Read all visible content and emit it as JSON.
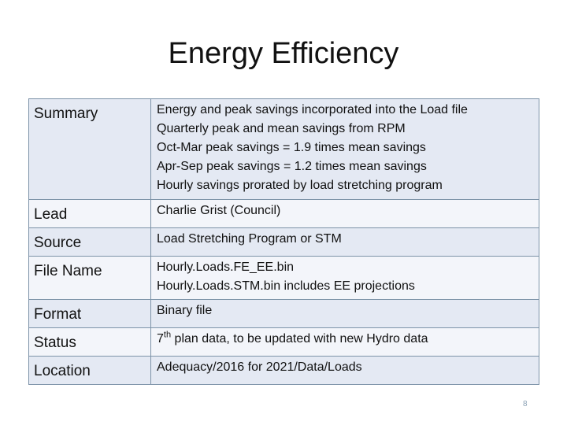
{
  "slide": {
    "title": "Energy Efficiency",
    "page_number": "8"
  },
  "table": {
    "rows": [
      {
        "label": "Summary",
        "lines": [
          "Energy and peak savings incorporated into the Load file",
          "Quarterly peak and mean savings from RPM",
          "Oct-Mar peak savings = 1.9 times mean savings",
          "Apr-Sep peak savings = 1.2 times mean savings",
          "Hourly savings prorated by load stretching program"
        ]
      },
      {
        "label": "Lead",
        "lines": [
          "Charlie Grist (Council)"
        ]
      },
      {
        "label": "Source",
        "lines": [
          "Load Stretching Program or STM"
        ]
      },
      {
        "label": "File Name",
        "lines": [
          "Hourly.Loads.FE_EE.bin",
          "Hourly.Loads.STM.bin includes EE projections"
        ]
      },
      {
        "label": "Format",
        "lines": [
          "Binary file"
        ]
      },
      {
        "label": "Status",
        "value_prefix": "7",
        "value_superscript": "th",
        "value_rest": " plan data, to be updated with new Hydro data"
      },
      {
        "label": "Location",
        "lines": [
          "Adequacy/2016 for 2021/Data/Loads"
        ]
      }
    ]
  },
  "colors": {
    "row_dark": "#e4e9f3",
    "row_light": "#f3f5fa",
    "border": "#7d93a8",
    "page_number": "#8aa0b4"
  }
}
